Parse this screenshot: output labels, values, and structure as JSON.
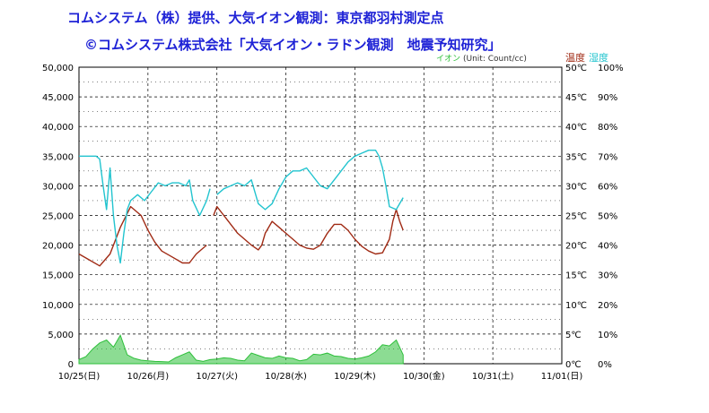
{
  "header": {
    "title": "コムシステム（株）提供、大気イオン観測：東京都羽村測定点",
    "subtitle": "©コムシステム株式会社「大気イオン・ラドン観測　地震予知研究」",
    "title_color": "#1e22d6"
  },
  "legend": {
    "ion": "イオン",
    "unit": "(Unit: Count/cc)",
    "temperature": "温度",
    "humidity": "湿度",
    "ion_color": "#2dbf3a",
    "temperature_color": "#a02a14",
    "humidity_color": "#22c4cf"
  },
  "chart_data": {
    "type": "line",
    "x_categories": [
      "10/25(日)",
      "10/26(月)",
      "10/27(火)",
      "10/28(水)",
      "10/29(木)",
      "10/30(金)",
      "10/31(土)",
      "11/01(日)"
    ],
    "y_left": {
      "min": 0,
      "max": 50000,
      "ticks": [
        "0",
        "5,000",
        "10,000",
        "15,000",
        "20,000",
        "25,000",
        "30,000",
        "35,000",
        "40,000",
        "45,000",
        "50,000"
      ]
    },
    "y_right_temperature": {
      "min": 0,
      "max": 50,
      "unit": "℃",
      "ticks": [
        "0℃",
        "5℃",
        "10℃",
        "15℃",
        "20℃",
        "25℃",
        "30℃",
        "35℃",
        "40℃",
        "45℃",
        "50℃"
      ]
    },
    "y_right_humidity": {
      "min": 0,
      "max": 100,
      "unit": "%",
      "ticks": [
        "0%",
        "10%",
        "20%",
        "30%",
        "40%",
        "50%",
        "60%",
        "70%",
        "80%",
        "90%",
        "100%"
      ]
    },
    "grid": true,
    "series": [
      {
        "name": "温度",
        "axis": "temperature",
        "x": [
          0,
          0.15,
          0.3,
          0.45,
          0.6,
          0.75,
          0.9,
          1.0,
          1.05,
          1.1,
          1.2,
          1.35,
          1.5,
          1.6,
          1.7,
          1.85,
          1.9,
          null,
          1.95,
          2.0,
          2.1,
          2.2,
          2.3,
          2.4,
          2.5,
          2.6,
          2.65,
          2.7,
          2.8,
          2.9,
          3.0,
          3.1,
          3.2,
          3.3,
          3.4,
          3.5,
          3.6,
          3.7,
          3.8,
          3.9,
          4.0,
          4.1,
          4.2,
          4.3,
          4.4,
          4.5,
          4.55,
          4.6,
          4.65,
          4.7
        ],
        "y": [
          18.5,
          17.5,
          16.5,
          18.5,
          23,
          26.5,
          25,
          22.5,
          21.5,
          20.5,
          19,
          18,
          17,
          17,
          18.5,
          20,
          null,
          22,
          25,
          26.5,
          25,
          23.5,
          22,
          21,
          20,
          19.2,
          20,
          22,
          24,
          23,
          22,
          21,
          20,
          19.5,
          19.3,
          20,
          22,
          23.5,
          23.5,
          22.5,
          21,
          19.8,
          19,
          18.5,
          18.7,
          21,
          24,
          26,
          24,
          22.5
        ]
      },
      {
        "name": "湿度",
        "axis": "humidity",
        "x": [
          0,
          0.15,
          0.25,
          0.3,
          0.35,
          0.4,
          0.45,
          0.5,
          0.55,
          0.6,
          0.65,
          0.7,
          0.75,
          0.85,
          0.95,
          1.05,
          1.15,
          1.25,
          1.35,
          1.45,
          1.55,
          1.6,
          1.65,
          1.75,
          1.85,
          1.9,
          null,
          2.0,
          2.1,
          2.2,
          2.3,
          2.4,
          2.5,
          2.6,
          2.7,
          2.8,
          2.9,
          3.0,
          3.1,
          3.2,
          3.3,
          3.4,
          3.5,
          3.6,
          3.7,
          3.8,
          3.9,
          4.0,
          4.1,
          4.2,
          4.3,
          4.35,
          4.4,
          4.45,
          4.5,
          4.6,
          4.7
        ],
        "y": [
          70,
          70,
          70,
          69,
          60,
          52,
          66,
          50,
          40,
          34,
          44,
          52,
          55,
          57,
          55,
          58,
          61,
          60,
          61,
          61,
          60,
          62,
          55,
          50,
          55,
          59,
          null,
          57,
          59,
          60,
          61,
          60,
          62,
          54,
          52,
          54,
          59,
          63,
          65,
          65,
          66,
          63,
          60,
          59,
          62,
          65,
          68,
          70,
          71,
          72,
          72,
          70,
          66,
          60,
          53,
          52,
          56
        ]
      },
      {
        "name": "イオン",
        "axis": "ion",
        "x": [
          0,
          0.1,
          0.2,
          0.3,
          0.4,
          0.5,
          0.6,
          0.7,
          0.8,
          0.9,
          1.0,
          1.1,
          1.2,
          1.3,
          1.4,
          1.5,
          1.6,
          1.7,
          1.8,
          1.9,
          2.0,
          2.1,
          2.2,
          2.3,
          2.4,
          2.5,
          2.6,
          2.7,
          2.8,
          2.9,
          3.0,
          3.1,
          3.2,
          3.3,
          3.4,
          3.5,
          3.6,
          3.7,
          3.8,
          3.9,
          4.0,
          4.1,
          4.2,
          4.3,
          4.4,
          4.5,
          4.6,
          4.7
        ],
        "y": [
          700,
          1200,
          2500,
          3500,
          4000,
          2800,
          4800,
          1500,
          900,
          600,
          500,
          400,
          350,
          300,
          1000,
          1500,
          2000,
          600,
          400,
          700,
          800,
          1000,
          900,
          600,
          500,
          1800,
          1400,
          1000,
          900,
          1300,
          1000,
          900,
          500,
          700,
          1600,
          1500,
          1800,
          1300,
          1200,
          900,
          800,
          1000,
          1300,
          2000,
          3200,
          3000,
          4000,
          1500
        ]
      }
    ]
  }
}
